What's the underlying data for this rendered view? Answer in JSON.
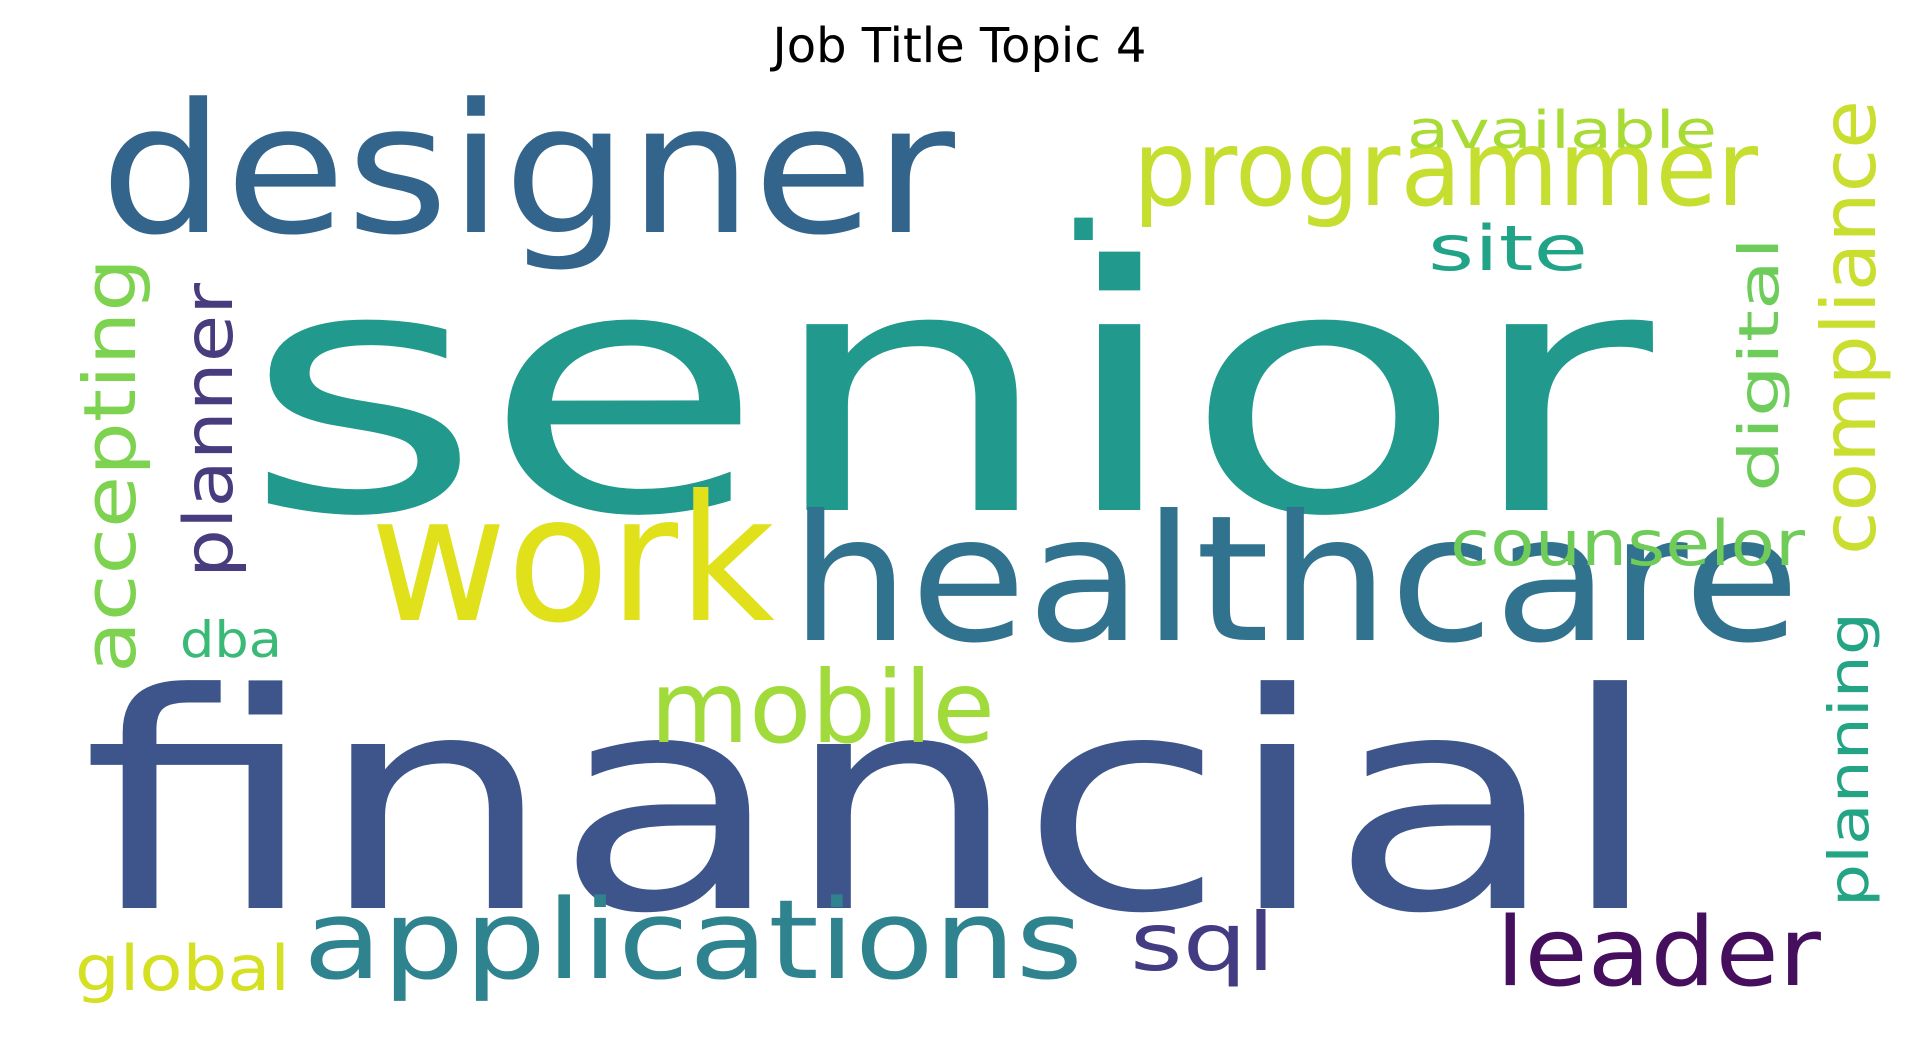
{
  "title": "Job Title Topic 4",
  "words": [
    {
      "text": "senior",
      "color": "#21998c"
    },
    {
      "text": "financial",
      "color": "#3d558a"
    },
    {
      "text": "designer",
      "color": "#33648c"
    },
    {
      "text": "healthcare",
      "color": "#31728e"
    },
    {
      "text": "work",
      "color": "#e0e11b"
    },
    {
      "text": "applications",
      "color": "#2e838f"
    },
    {
      "text": "programmer",
      "color": "#c6de2f"
    },
    {
      "text": "mobile",
      "color": "#a1da3b"
    },
    {
      "text": "leader",
      "color": "#460f5e"
    },
    {
      "text": "sql",
      "color": "#443c83"
    },
    {
      "text": "compliance",
      "color": "#c9de2e"
    },
    {
      "text": "accepting",
      "color": "#7dd24f"
    },
    {
      "text": "planner",
      "color": "#483b7e"
    },
    {
      "text": "counselor",
      "color": "#6fcc58"
    },
    {
      "text": "digital",
      "color": "#6ecd5a"
    },
    {
      "text": "planning",
      "color": "#23a585"
    },
    {
      "text": "site",
      "color": "#21a387"
    },
    {
      "text": "available",
      "color": "#a8db34"
    },
    {
      "text": "global",
      "color": "#d4e021"
    },
    {
      "text": "dba",
      "color": "#3bb977"
    },
    {
      "text": ".",
      "color": "#21998c"
    }
  ]
}
